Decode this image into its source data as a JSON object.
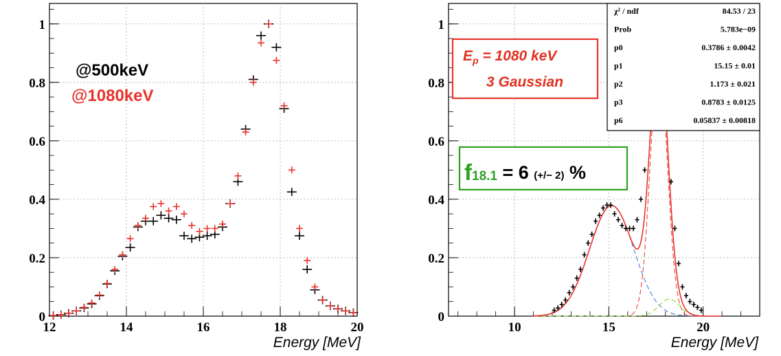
{
  "colors": {
    "series_500": "#000000",
    "series_1080": "#e8312a",
    "fit_total": "#e8312a",
    "gauss_broad": "#3a6fd8",
    "gauss_peak": "#e8312a",
    "gauss_small": "#7ed321",
    "frac_box": "#2da020",
    "ep_box": "#e8312a"
  },
  "chart_data": [
    {
      "type": "scatter",
      "xlabel": "Energy [MeV]",
      "ylabel": "",
      "xlim": [
        12,
        20
      ],
      "ylim": [
        0,
        1.07
      ],
      "x_ticks": [
        "12",
        "14",
        "16",
        "18",
        "20"
      ],
      "y_ticks": [
        "0",
        "0.2",
        "0.4",
        "0.6",
        "0.8",
        "1"
      ],
      "legend": [
        "@500keV",
        "@1080keV"
      ],
      "grid": true,
      "series": [
        {
          "name": "@500keV",
          "x": [
            12.1,
            12.3,
            12.5,
            12.7,
            12.9,
            13.1,
            13.3,
            13.5,
            13.7,
            13.9,
            14.1,
            14.3,
            14.5,
            14.7,
            14.9,
            15.1,
            15.3,
            15.5,
            15.7,
            15.9,
            16.1,
            16.3,
            16.5,
            16.7,
            16.9,
            17.1,
            17.3,
            17.5,
            17.7,
            17.9,
            18.1,
            18.3,
            18.5,
            18.7,
            18.9,
            19.1,
            19.3,
            19.5,
            19.7,
            19.9
          ],
          "y": [
            0.002,
            0.005,
            0.01,
            0.018,
            0.028,
            0.042,
            0.07,
            0.11,
            0.155,
            0.205,
            0.235,
            0.305,
            0.325,
            0.325,
            0.345,
            0.335,
            0.33,
            0.275,
            0.265,
            0.27,
            0.275,
            0.28,
            0.305,
            0.385,
            0.46,
            0.64,
            0.81,
            0.96,
            1.0,
            0.92,
            0.71,
            0.425,
            0.275,
            0.16,
            0.09,
            0.055,
            0.035,
            0.025,
            0.018,
            0.012
          ]
        },
        {
          "name": "@1080keV",
          "x": [
            12.1,
            12.3,
            12.5,
            12.7,
            12.9,
            13.1,
            13.3,
            13.5,
            13.7,
            13.9,
            14.1,
            14.3,
            14.5,
            14.7,
            14.9,
            15.1,
            15.3,
            15.5,
            15.7,
            15.9,
            16.1,
            16.3,
            16.5,
            16.7,
            16.9,
            17.1,
            17.3,
            17.5,
            17.7,
            17.9,
            18.1,
            18.3,
            18.5,
            18.7,
            18.9,
            19.1,
            19.3,
            19.5,
            19.7,
            19.9
          ],
          "y": [
            0.002,
            0.005,
            0.01,
            0.018,
            0.03,
            0.045,
            0.072,
            0.112,
            0.16,
            0.21,
            0.265,
            0.31,
            0.335,
            0.375,
            0.385,
            0.36,
            0.375,
            0.35,
            0.31,
            0.29,
            0.3,
            0.3,
            0.315,
            0.385,
            0.48,
            0.63,
            0.8,
            0.935,
            1.0,
            0.875,
            0.72,
            0.5,
            0.3,
            0.19,
            0.1,
            0.055,
            0.035,
            0.025,
            0.018,
            0.012
          ]
        }
      ]
    },
    {
      "type": "scatter",
      "xlabel": "Energy [MeV]",
      "ylabel": "",
      "xlim": [
        6.5,
        23
      ],
      "ylim": [
        0,
        1.07
      ],
      "x_ticks": [
        "10",
        "15",
        "20"
      ],
      "y_ticks": [
        "0",
        "0.2",
        "0.4",
        "0.6",
        "0.8",
        "1"
      ],
      "grid": true,
      "series": [
        {
          "name": "",
          "x": [
            12.1,
            12.3,
            12.5,
            12.7,
            12.9,
            13.1,
            13.3,
            13.5,
            13.7,
            13.9,
            14.1,
            14.3,
            14.5,
            14.7,
            14.9,
            15.1,
            15.3,
            15.5,
            15.7,
            15.9,
            16.1,
            16.3,
            16.5,
            16.7,
            16.9,
            17.1,
            17.3,
            17.5,
            17.7,
            17.9,
            18.1,
            18.3,
            18.5,
            18.7,
            18.9,
            19.1,
            19.3,
            19.5,
            19.7,
            19.9
          ],
          "y": [
            0.02,
            0.028,
            0.04,
            0.055,
            0.08,
            0.1,
            0.13,
            0.16,
            0.21,
            0.25,
            0.28,
            0.325,
            0.345,
            0.37,
            0.38,
            0.38,
            0.35,
            0.33,
            0.31,
            0.3,
            0.3,
            0.3,
            0.33,
            0.4,
            0.5,
            0.66,
            0.82,
            0.97,
            1.0,
            0.9,
            0.72,
            0.46,
            0.3,
            0.18,
            0.1,
            0.07,
            0.05,
            0.04,
            0.03,
            0.02
          ]
        }
      ],
      "fit": {
        "components": [
          {
            "name": "",
            "amplitude": 0.3786,
            "mean": 15.15,
            "sigma": 1.173
          },
          {
            "name": "",
            "amplitude": 0.8783,
            "mean": 17.65,
            "sigma": 0.45
          },
          {
            "name": "",
            "amplitude": 0.05837,
            "mean": 18.2,
            "sigma": 0.55
          }
        ]
      }
    }
  ],
  "left_panel": {
    "legend_500": "@500keV",
    "legend_1080": "@1080keV",
    "xlabel": "Energy [MeV]"
  },
  "right_panel": {
    "xlabel": "Energy [MeV]",
    "ep_label_sub": "p",
    "ep_label_value": " = 1080 keV",
    "ep_label_line2": "3 Gaussian",
    "frac_f": "f",
    "frac_sub": "18.1",
    "frac_eq": " = 6 ",
    "frac_err": "(+/− 2)",
    "frac_pct": " %",
    "stats": [
      {
        "name": "χ² / ndf",
        "value": "84.53 / 23"
      },
      {
        "name": "Prob",
        "value": "5.783e−09"
      },
      {
        "name": "p0",
        "value": "0.3786 ± 0.0042"
      },
      {
        "name": "p1",
        "value": "15.15 ± 0.01"
      },
      {
        "name": "p2",
        "value": "1.173 ± 0.021"
      },
      {
        "name": "p3",
        "value": "0.8783 ± 0.0125"
      },
      {
        "name": "p6",
        "value": "0.05837 ± 0.00818"
      }
    ]
  }
}
